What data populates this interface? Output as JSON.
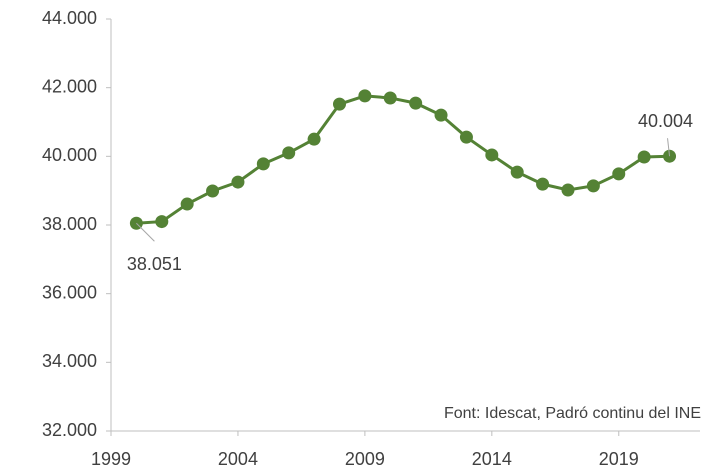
{
  "chart_data": {
    "type": "line",
    "x": [
      2000,
      2001,
      2002,
      2003,
      2004,
      2005,
      2006,
      2007,
      2008,
      2009,
      2010,
      2011,
      2012,
      2013,
      2014,
      2015,
      2016,
      2017,
      2018,
      2019,
      2020,
      2021
    ],
    "series": [
      {
        "color": "#548235",
        "values": [
          38051,
          38100,
          38610,
          38990,
          39250,
          39780,
          40100,
          40500,
          41520,
          41760,
          41700,
          41550,
          41200,
          40560,
          40040,
          39540,
          39190,
          39020,
          39140,
          39490,
          39980,
          40004
        ],
        "value_labels": [
          "38.051",
          null,
          null,
          null,
          null,
          null,
          null,
          null,
          null,
          null,
          null,
          null,
          null,
          null,
          null,
          null,
          null,
          null,
          null,
          null,
          null,
          "40.004"
        ]
      }
    ],
    "xlim": [
      1999,
      2022.2
    ],
    "xticks": [
      1999,
      2004,
      2009,
      2014,
      2019
    ],
    "ylim": [
      32000,
      44000
    ],
    "yticks": [
      {
        "value": 32000,
        "label": "32.000"
      },
      {
        "value": 34000,
        "label": "34.000"
      },
      {
        "value": 36000,
        "label": "36.000"
      },
      {
        "value": 38000,
        "label": "38.000"
      },
      {
        "value": 40000,
        "label": "40.000"
      },
      {
        "value": 42000,
        "label": "42.000"
      },
      {
        "value": 44000,
        "label": "44.000"
      }
    ],
    "annotation": "Font: Idescat, Padró continu del INE"
  }
}
